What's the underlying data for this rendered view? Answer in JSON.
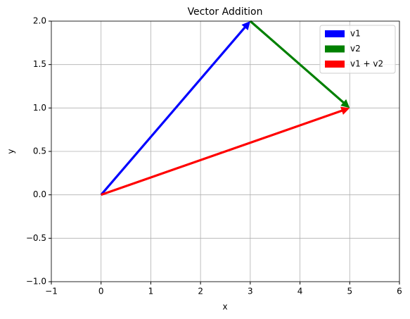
{
  "chart_data": {
    "type": "quiver",
    "title": "Vector Addition",
    "x_label": "x",
    "y_label": "y",
    "series": [
      {
        "name": "v1",
        "color": "#0000ff",
        "origin": [
          0,
          0
        ],
        "vector": [
          3,
          2
        ]
      },
      {
        "name": "v2",
        "color": "#008000",
        "origin": [
          3,
          2
        ],
        "vector": [
          2,
          -1
        ]
      },
      {
        "name": "v1 + v2",
        "color": "#ff0000",
        "origin": [
          0,
          0
        ],
        "vector": [
          5,
          1
        ]
      }
    ],
    "xlim": [
      -1,
      6
    ],
    "xticks": [
      {
        "value": -1,
        "label": "−1"
      },
      0,
      1,
      2,
      3,
      4,
      5,
      6
    ],
    "ylim": [
      -1,
      2
    ],
    "yticks": [
      {
        "value": -1,
        "label": "−1.0"
      },
      {
        "value": -0.5,
        "label": "−0.5"
      },
      {
        "value": 0,
        "label": "0.0"
      },
      0.5,
      {
        "value": 1,
        "label": "1.0"
      },
      1.5,
      {
        "value": 2,
        "label": "2.0"
      }
    ],
    "grid": true,
    "legend": "upper right"
  }
}
